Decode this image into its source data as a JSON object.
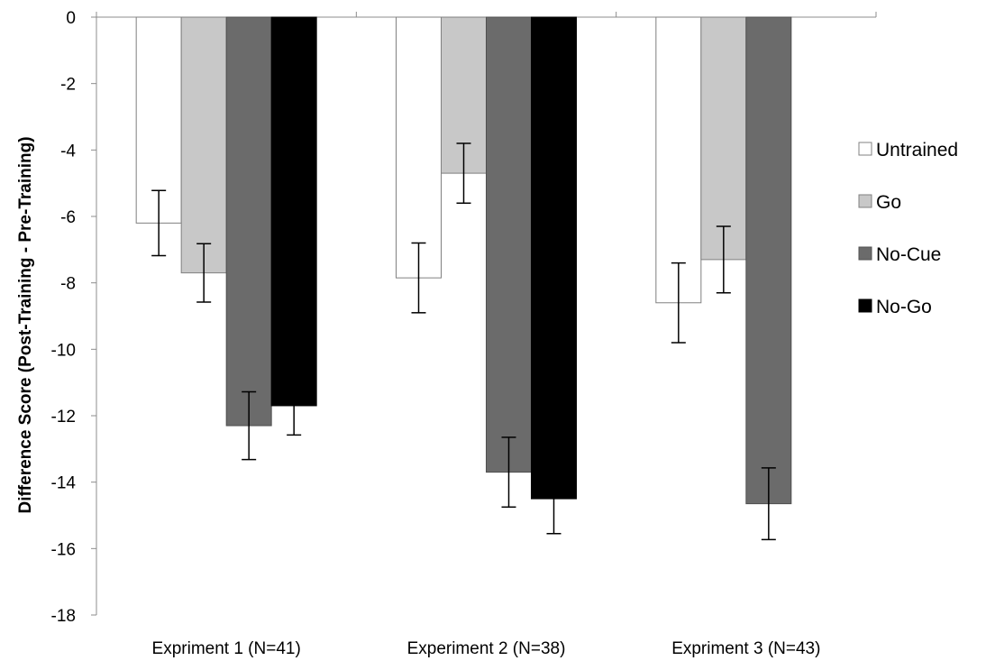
{
  "chart_data": {
    "type": "bar",
    "title": "",
    "xlabel": "",
    "ylabel": "Difference Score (Post-Training - Pre-Training)",
    "ylim": [
      -18,
      0
    ],
    "yticks": [
      0,
      -2,
      -4,
      -6,
      -8,
      -10,
      -12,
      -14,
      -16,
      -18
    ],
    "categories": [
      "Expriment 1 (N=41)",
      "Experiment 2 (N=38)",
      "Expriment 3 (N=43)"
    ],
    "legend_position": "right",
    "grid": false,
    "series": [
      {
        "name": "Untrained",
        "color": "#ffffff",
        "stroke": "#808080",
        "values": [
          -6.2,
          -7.85,
          -8.6
        ],
        "errors": [
          0.98,
          1.05,
          1.2
        ]
      },
      {
        "name": "Go",
        "color": "#c8c8c8",
        "stroke": "#808080",
        "values": [
          -7.7,
          -4.7,
          -7.3
        ],
        "errors": [
          0.88,
          0.9,
          1.0
        ]
      },
      {
        "name": "No-Cue",
        "color": "#6b6b6b",
        "stroke": "#505050",
        "values": [
          -12.3,
          -13.7,
          -14.65
        ],
        "errors": [
          1.02,
          1.05,
          1.08
        ]
      },
      {
        "name": "No-Go",
        "color": "#000000",
        "stroke": "#000000",
        "values": [
          -11.7,
          -14.5,
          null
        ],
        "errors": [
          0.88,
          1.05,
          null
        ]
      }
    ]
  }
}
